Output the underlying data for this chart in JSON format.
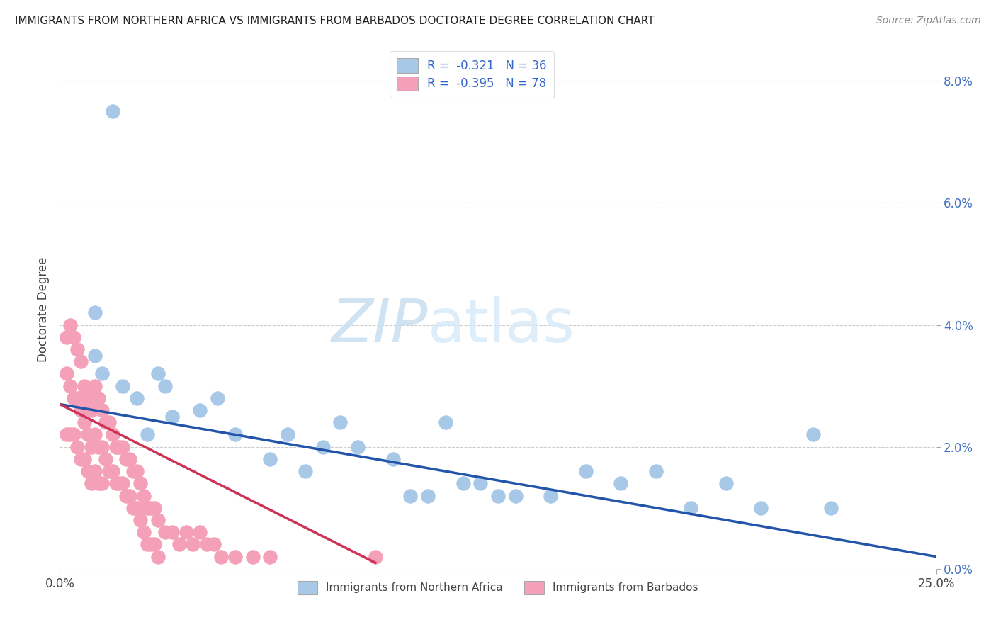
{
  "title": "IMMIGRANTS FROM NORTHERN AFRICA VS IMMIGRANTS FROM BARBADOS DOCTORATE DEGREE CORRELATION CHART",
  "source": "Source: ZipAtlas.com",
  "ylabel": "Doctorate Degree",
  "xlim": [
    0,
    0.25
  ],
  "ylim": [
    0,
    0.085
  ],
  "legend_blue_label": "R =  -0.321   N = 36",
  "legend_pink_label": "R =  -0.395   N = 78",
  "blue_color": "#a8c8e8",
  "pink_color": "#f4a0b8",
  "blue_line_color": "#2255aa",
  "pink_line_color": "#cc3355",
  "blue_scatter_x": [
    0.015,
    0.01,
    0.01,
    0.012,
    0.018,
    0.022,
    0.028,
    0.03,
    0.032,
    0.025,
    0.04,
    0.045,
    0.05,
    0.06,
    0.065,
    0.07,
    0.075,
    0.08,
    0.085,
    0.095,
    0.1,
    0.105,
    0.11,
    0.115,
    0.12,
    0.125,
    0.13,
    0.14,
    0.15,
    0.16,
    0.17,
    0.18,
    0.19,
    0.2,
    0.215,
    0.22
  ],
  "blue_scatter_y": [
    0.075,
    0.042,
    0.035,
    0.032,
    0.03,
    0.028,
    0.032,
    0.03,
    0.025,
    0.022,
    0.026,
    0.028,
    0.022,
    0.018,
    0.022,
    0.016,
    0.02,
    0.024,
    0.02,
    0.018,
    0.012,
    0.012,
    0.024,
    0.014,
    0.014,
    0.012,
    0.012,
    0.012,
    0.016,
    0.014,
    0.016,
    0.01,
    0.014,
    0.01,
    0.022,
    0.01
  ],
  "pink_scatter_x": [
    0.002,
    0.002,
    0.002,
    0.003,
    0.003,
    0.003,
    0.004,
    0.004,
    0.004,
    0.005,
    0.005,
    0.005,
    0.006,
    0.006,
    0.006,
    0.007,
    0.007,
    0.007,
    0.008,
    0.008,
    0.008,
    0.009,
    0.009,
    0.009,
    0.01,
    0.01,
    0.01,
    0.011,
    0.011,
    0.011,
    0.012,
    0.012,
    0.012,
    0.013,
    0.013,
    0.014,
    0.014,
    0.015,
    0.015,
    0.016,
    0.016,
    0.017,
    0.017,
    0.018,
    0.018,
    0.019,
    0.019,
    0.02,
    0.02,
    0.021,
    0.021,
    0.022,
    0.022,
    0.023,
    0.023,
    0.024,
    0.024,
    0.025,
    0.025,
    0.026,
    0.026,
    0.027,
    0.027,
    0.028,
    0.028,
    0.03,
    0.032,
    0.034,
    0.036,
    0.038,
    0.04,
    0.042,
    0.044,
    0.046,
    0.05,
    0.055,
    0.06,
    0.09
  ],
  "pink_scatter_y": [
    0.038,
    0.032,
    0.022,
    0.04,
    0.03,
    0.022,
    0.038,
    0.028,
    0.022,
    0.036,
    0.028,
    0.02,
    0.034,
    0.026,
    0.018,
    0.03,
    0.024,
    0.018,
    0.028,
    0.022,
    0.016,
    0.026,
    0.02,
    0.014,
    0.03,
    0.022,
    0.016,
    0.028,
    0.02,
    0.014,
    0.026,
    0.02,
    0.014,
    0.024,
    0.018,
    0.024,
    0.016,
    0.022,
    0.016,
    0.02,
    0.014,
    0.02,
    0.014,
    0.02,
    0.014,
    0.018,
    0.012,
    0.018,
    0.012,
    0.016,
    0.01,
    0.016,
    0.01,
    0.014,
    0.008,
    0.012,
    0.006,
    0.01,
    0.004,
    0.01,
    0.004,
    0.01,
    0.004,
    0.008,
    0.002,
    0.006,
    0.006,
    0.004,
    0.006,
    0.004,
    0.006,
    0.004,
    0.004,
    0.002,
    0.002,
    0.002,
    0.002,
    0.002
  ],
  "blue_trend_x": [
    0.0,
    0.25
  ],
  "blue_trend_y": [
    0.027,
    0.002
  ],
  "pink_trend_x": [
    0.0,
    0.09
  ],
  "pink_trend_y": [
    0.027,
    0.001
  ]
}
